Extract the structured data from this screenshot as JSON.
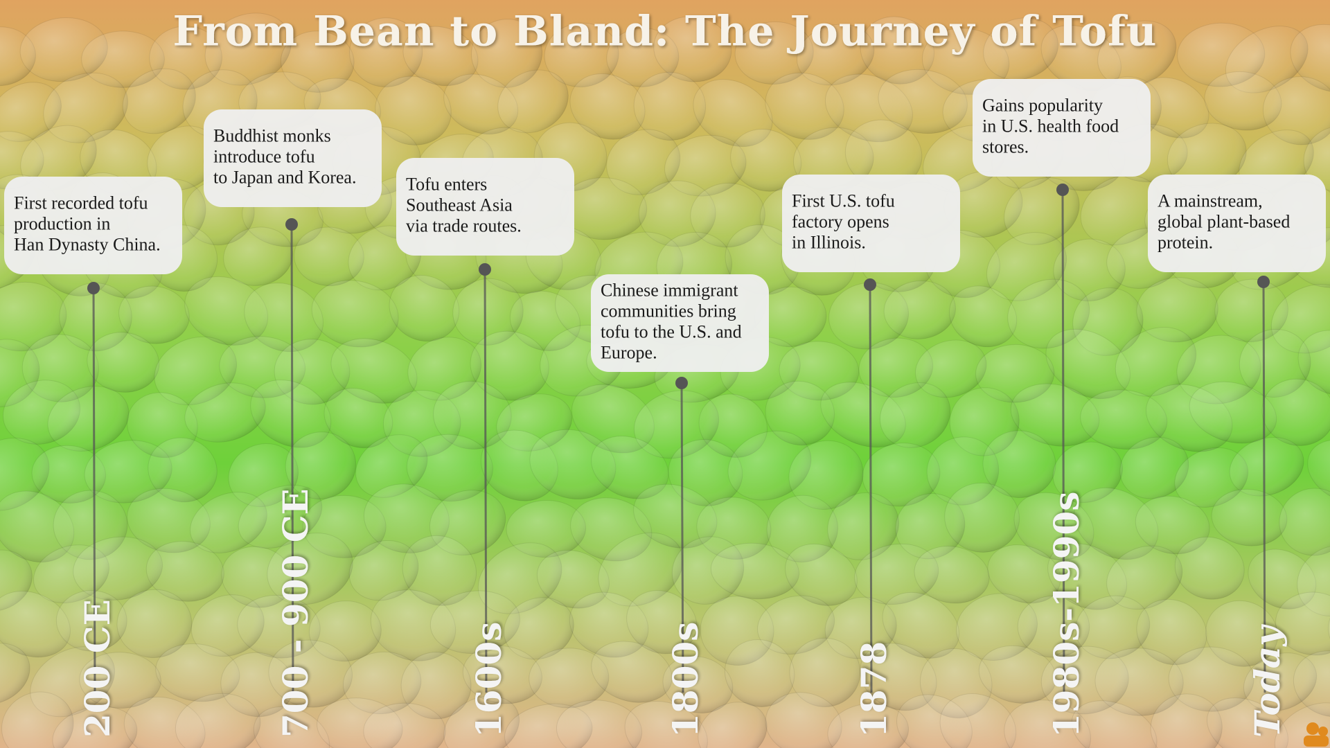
{
  "title": "From Bean to Bland: The Journey of Tofu",
  "events": [
    {
      "date": "200 CE",
      "text": [
        "First recorded tofu",
        "production in",
        "Han Dynasty China."
      ]
    },
    {
      "date": "700 - 900 CE",
      "text": [
        "Buddhist monks",
        "introduce tofu",
        "to Japan and Korea."
      ]
    },
    {
      "date": "1600s",
      "text": [
        "Tofu enters",
        "Southeast Asia",
        "via trade routes."
      ]
    },
    {
      "date": "1800s",
      "text": [
        "Chinese immigrant",
        "communities bring",
        "tofu to the U.S. and",
        "Europe."
      ]
    },
    {
      "date": "1878",
      "text": [
        "First U.S. tofu",
        "factory opens",
        "in Illinois."
      ]
    },
    {
      "date": "1980s-1990s",
      "text": [
        "Gains popularity",
        "in U.S. health food",
        "stores."
      ]
    },
    {
      "date": "Today",
      "text": [
        "A mainstream,",
        "global plant-based",
        "protein."
      ]
    }
  ]
}
